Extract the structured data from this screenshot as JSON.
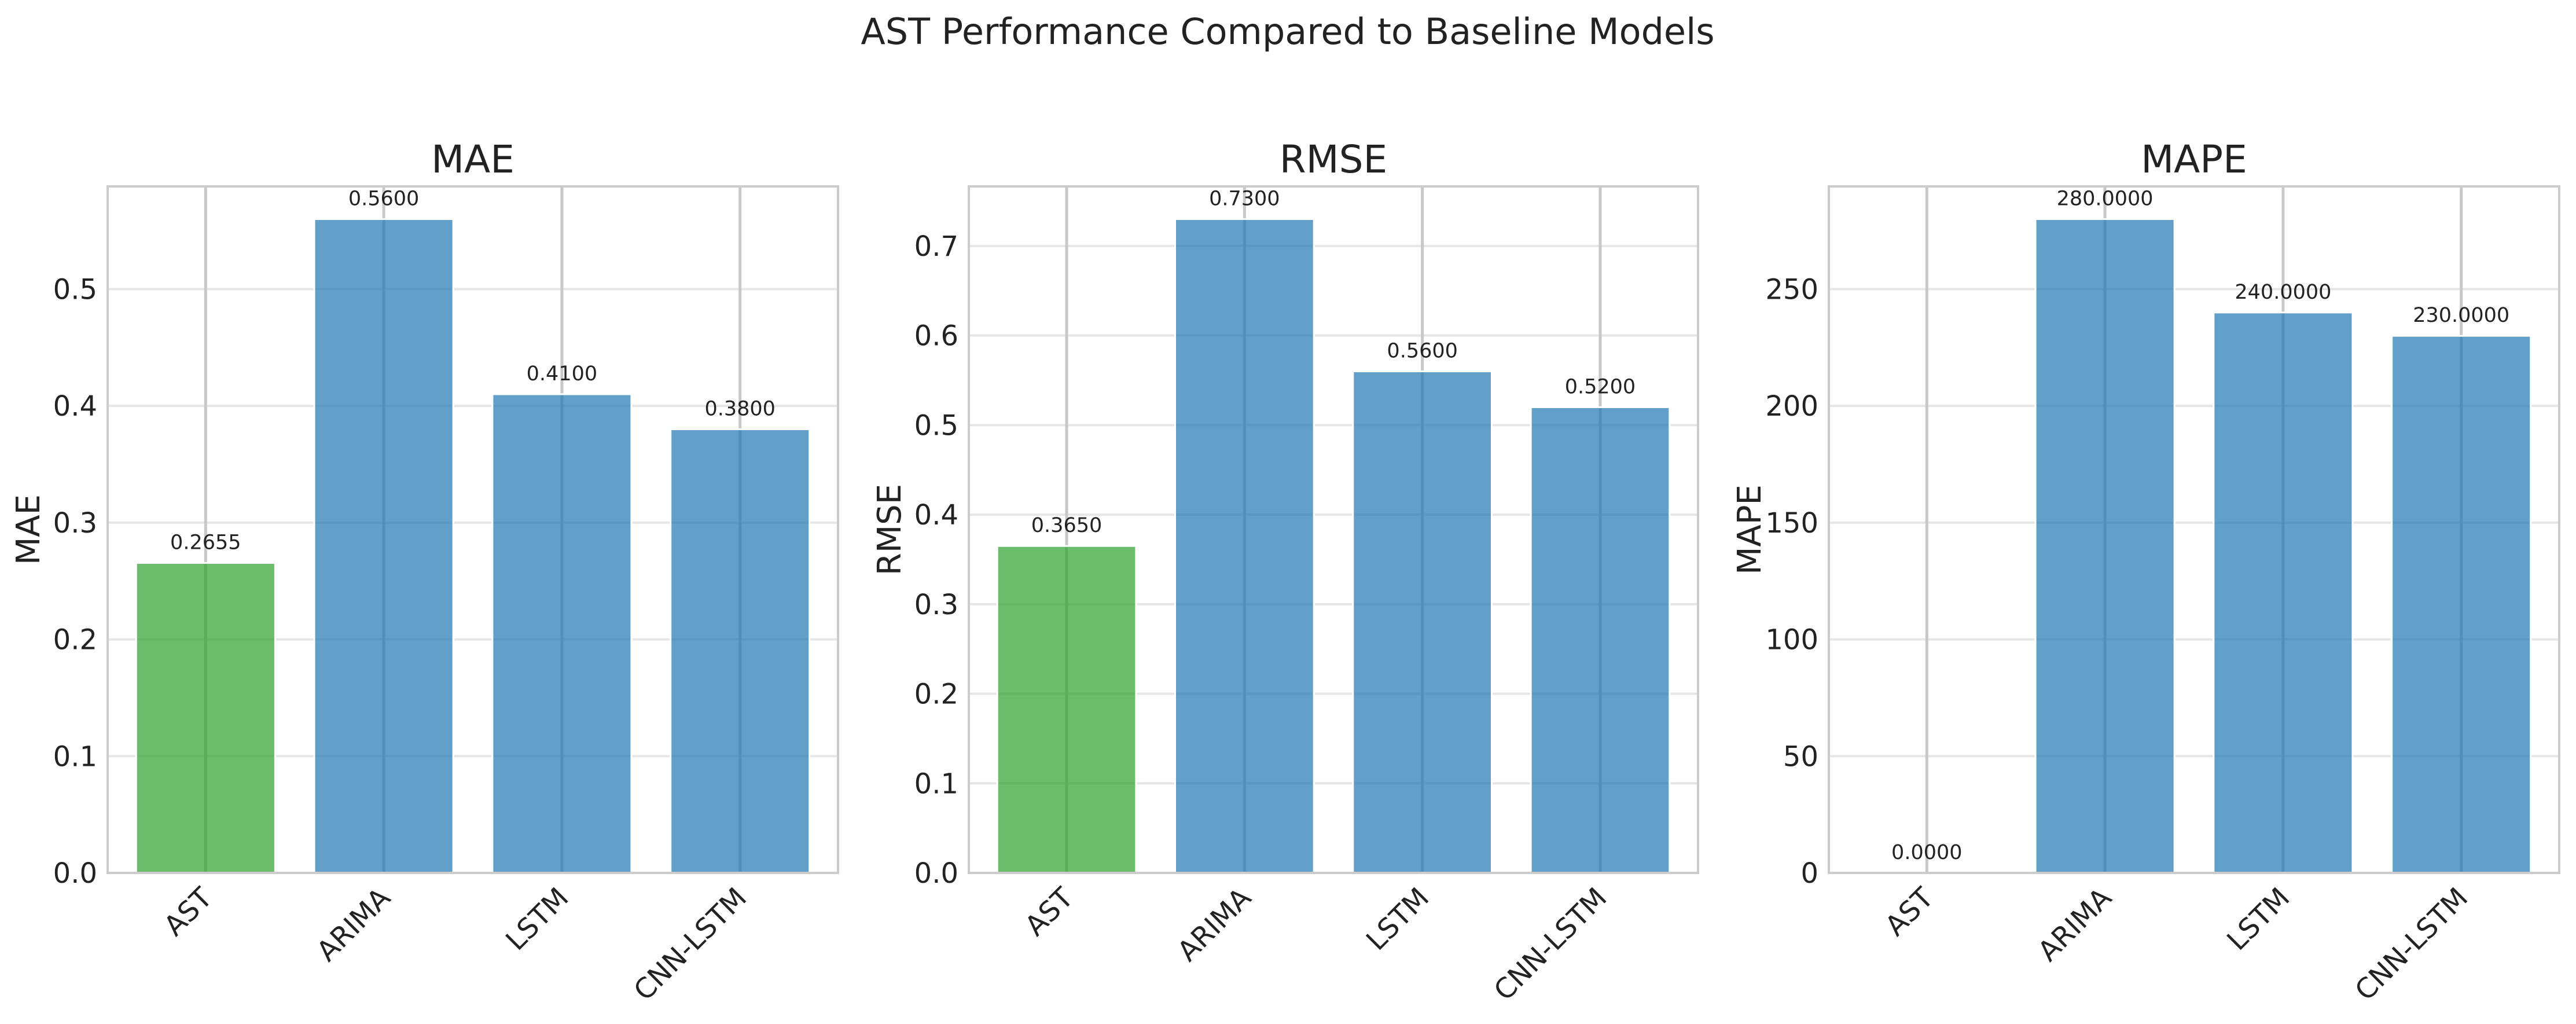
{
  "title": "AST Performance Compared to Baseline Models",
  "chart_data": [
    {
      "type": "bar",
      "title": "MAE",
      "ylabel": "MAE",
      "xlabel": "",
      "categories": [
        "AST",
        "ARIMA",
        "LSTM",
        "CNN-LSTM"
      ],
      "values": [
        0.2655,
        0.56,
        0.41,
        0.38
      ],
      "value_labels": [
        "0.2655",
        "0.5600",
        "0.4100",
        "0.3800"
      ],
      "bar_colors": [
        "#2ca02c",
        "#1f77b4",
        "#1f77b4",
        "#1f77b4"
      ],
      "ylim": [
        0,
        0.588
      ],
      "yticks": [
        0.0,
        0.1,
        0.2,
        0.3,
        0.4,
        0.5
      ],
      "ytick_labels": [
        "0.0",
        "0.1",
        "0.2",
        "0.3",
        "0.4",
        "0.5"
      ],
      "grid": true
    },
    {
      "type": "bar",
      "title": "RMSE",
      "ylabel": "RMSE",
      "xlabel": "",
      "categories": [
        "AST",
        "ARIMA",
        "LSTM",
        "CNN-LSTM"
      ],
      "values": [
        0.365,
        0.73,
        0.56,
        0.52
      ],
      "value_labels": [
        "0.3650",
        "0.7300",
        "0.5600",
        "0.5200"
      ],
      "bar_colors": [
        "#2ca02c",
        "#1f77b4",
        "#1f77b4",
        "#1f77b4"
      ],
      "ylim": [
        0,
        0.7665
      ],
      "yticks": [
        0.0,
        0.1,
        0.2,
        0.3,
        0.4,
        0.5,
        0.6,
        0.7
      ],
      "ytick_labels": [
        "0.0",
        "0.1",
        "0.2",
        "0.3",
        "0.4",
        "0.5",
        "0.6",
        "0.7"
      ],
      "grid": true
    },
    {
      "type": "bar",
      "title": "MAPE",
      "ylabel": "MAPE",
      "xlabel": "",
      "categories": [
        "AST",
        "ARIMA",
        "LSTM",
        "CNN-LSTM"
      ],
      "values": [
        0,
        280,
        240,
        230
      ],
      "value_labels": [
        "0.0000",
        "280.0000",
        "240.0000",
        "230.0000"
      ],
      "bar_colors": [
        "#2ca02c",
        "#1f77b4",
        "#1f77b4",
        "#1f77b4"
      ],
      "ylim": [
        0,
        294
      ],
      "yticks": [
        0,
        50,
        100,
        150,
        200,
        250
      ],
      "ytick_labels": [
        "0",
        "50",
        "100",
        "150",
        "200",
        "250"
      ],
      "grid": true
    }
  ]
}
